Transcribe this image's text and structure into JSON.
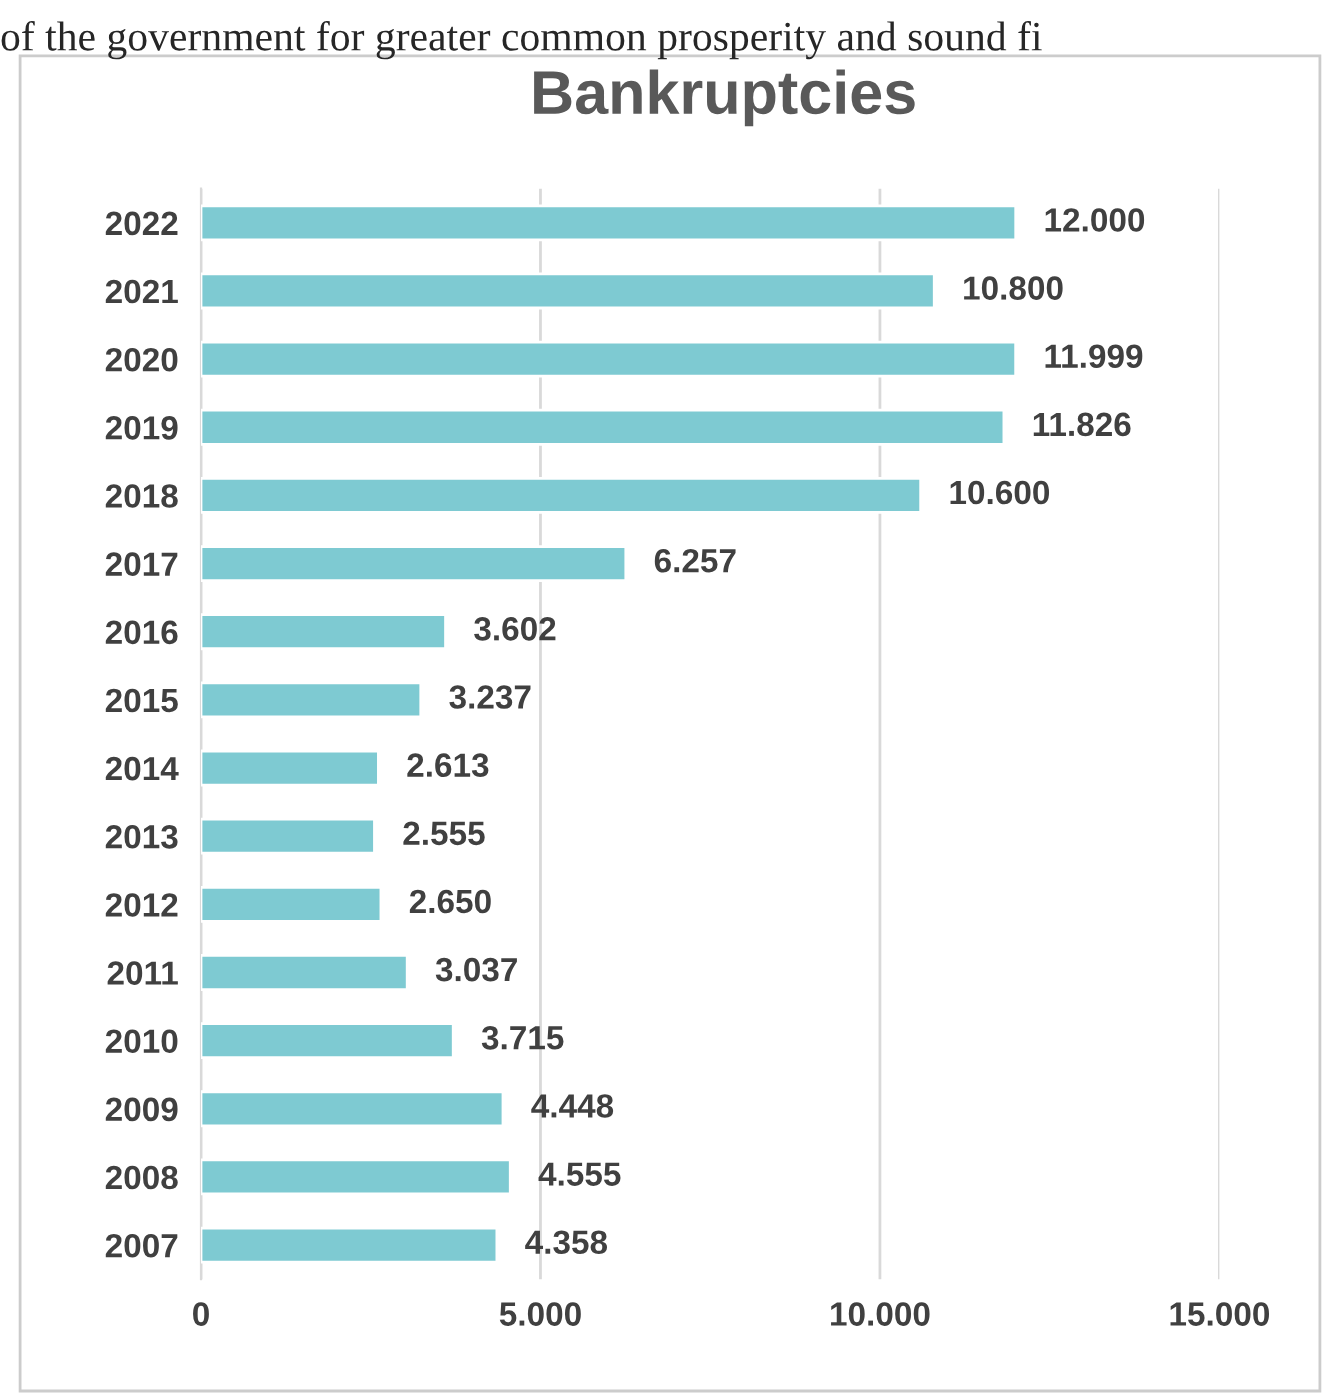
{
  "chart_data": {
    "type": "bar",
    "orientation": "horizontal",
    "title": "Bankruptcies",
    "annotations": [
      "of the government for greater common prosperity and sound fi"
    ],
    "categories": [
      "2022",
      "2021",
      "2020",
      "2019",
      "2018",
      "2017",
      "2016",
      "2015",
      "2014",
      "2013",
      "2012",
      "2011",
      "2010",
      "2009",
      "2008",
      "2007"
    ],
    "values": [
      12000,
      10800,
      11999,
      11826,
      10600,
      6257,
      3602,
      3237,
      2613,
      2555,
      2650,
      3037,
      3715,
      4448,
      4555,
      4358
    ],
    "value_labels": [
      "12.000",
      "10.800",
      "11.999",
      "11.826",
      "10.600",
      "6.257",
      "3.602",
      "3.237",
      "2.613",
      "2.555",
      "2.650",
      "3.037",
      "3.715",
      "4.448",
      "4.555",
      "4.358"
    ],
    "color": "#7ecad2",
    "xlim": [
      0,
      15000
    ],
    "xticks": [
      0,
      {
        "value": 5000,
        "label": "5.000"
      },
      {
        "value": 10000,
        "label": "10.000"
      },
      {
        "value": 15000,
        "label": "15.000"
      }
    ],
    "grid": "x"
  }
}
